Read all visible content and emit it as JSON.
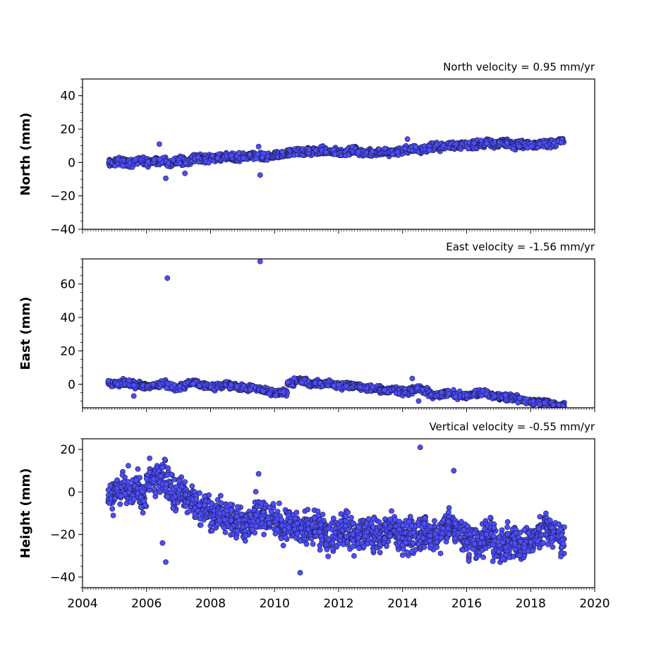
{
  "chart_data": [
    {
      "type": "scatter",
      "title": "North velocity = 0.95 mm/yr",
      "xlabel": "",
      "ylabel": "North (mm)",
      "xlim": [
        2004,
        2020
      ],
      "ylim": [
        -40,
        50
      ],
      "yticks": [
        -40,
        -20,
        0,
        20,
        40
      ],
      "xticks": [
        2004,
        2006,
        2008,
        2010,
        2012,
        2014,
        2016,
        2018,
        2020
      ],
      "show_x_tick_labels": false,
      "grid": false,
      "marker_color": "#4d4dff",
      "marker_edge": "#1a1a40",
      "series": [
        {
          "values_x": [
            2004.9,
            2005.1,
            2005.3,
            2005.5,
            2005.7,
            2005.9,
            2006.1,
            2006.3,
            2006.5,
            2006.7,
            2006.9,
            2007.1,
            2007.3,
            2007.5,
            2007.7,
            2007.9,
            2008.1,
            2008.3,
            2008.5,
            2008.7,
            2008.9,
            2009.1,
            2009.3,
            2009.5,
            2009.7,
            2009.9,
            2010.1,
            2010.3,
            2010.5,
            2010.7,
            2010.9,
            2011.1,
            2011.3,
            2011.5,
            2011.7,
            2011.9,
            2012.1,
            2012.3,
            2012.5,
            2012.7,
            2012.9,
            2013.1,
            2013.3,
            2013.5,
            2013.7,
            2013.9,
            2014.1,
            2014.3,
            2014.5,
            2014.7,
            2014.9,
            2015.1,
            2015.3,
            2015.5,
            2015.7,
            2015.9,
            2016.1,
            2016.3,
            2016.5,
            2016.7,
            2016.9,
            2017.1,
            2017.3,
            2017.5,
            2017.7,
            2017.9,
            2018.1,
            2018.3,
            2018.5,
            2018.7,
            2018.95,
            2006.4,
            2006.6,
            2009.5,
            2009.55,
            2007.2,
            2014.15
          ],
          "values_y": [
            -0.5,
            0.5,
            0.2,
            -0.5,
            0.8,
            0.6,
            0.0,
            1.5,
            1.0,
            -0.5,
            1.0,
            1.2,
            0.5,
            2.5,
            2.8,
            2.2,
            3.0,
            2.5,
            3.5,
            3.2,
            3.0,
            3.5,
            4.0,
            3.5,
            3.0,
            3.8,
            4.2,
            5.0,
            6.0,
            6.5,
            6.0,
            6.5,
            6.8,
            7.0,
            6.5,
            6.2,
            6.0,
            6.5,
            7.0,
            6.0,
            6.2,
            5.8,
            6.5,
            6.0,
            6.2,
            6.5,
            7.5,
            8.5,
            8.0,
            8.0,
            9.0,
            9.5,
            9.8,
            10.5,
            10.0,
            10.5,
            10.2,
            10.8,
            11.0,
            11.5,
            11.0,
            12.0,
            11.5,
            10.5,
            10.8,
            11.0,
            10.5,
            11.0,
            11.5,
            11.2,
            13.0,
            11.0,
            -9.5,
            9.5,
            -7.5,
            -6.5,
            14.0
          ]
        }
      ]
    },
    {
      "type": "scatter",
      "title": "East velocity = -1.56 mm/yr",
      "xlabel": "",
      "ylabel": "East (mm)",
      "xlim": [
        2004,
        2020
      ],
      "ylim": [
        -14,
        75
      ],
      "yticks": [
        0,
        20,
        40,
        60
      ],
      "xticks": [
        2004,
        2006,
        2008,
        2010,
        2012,
        2014,
        2016,
        2018,
        2020
      ],
      "show_x_tick_labels": false,
      "grid": false,
      "marker_color": "#4d4dff",
      "marker_edge": "#1a1a40",
      "series": [
        {
          "values_x": [
            2004.9,
            2005.1,
            2005.3,
            2005.5,
            2005.7,
            2005.9,
            2006.1,
            2006.3,
            2006.5,
            2006.7,
            2006.9,
            2007.1,
            2007.3,
            2007.5,
            2007.7,
            2007.9,
            2008.1,
            2008.3,
            2008.5,
            2008.7,
            2008.9,
            2009.1,
            2009.3,
            2009.5,
            2009.7,
            2009.9,
            2010.1,
            2010.3,
            2010.5,
            2010.7,
            2010.9,
            2011.1,
            2011.3,
            2011.5,
            2011.7,
            2011.9,
            2012.1,
            2012.3,
            2012.5,
            2012.7,
            2012.9,
            2013.1,
            2013.3,
            2013.5,
            2013.7,
            2013.9,
            2014.1,
            2014.3,
            2014.5,
            2014.7,
            2014.9,
            2015.1,
            2015.3,
            2015.5,
            2015.7,
            2015.9,
            2016.1,
            2016.3,
            2016.5,
            2016.7,
            2016.9,
            2017.1,
            2017.3,
            2017.5,
            2017.7,
            2017.9,
            2018.1,
            2018.3,
            2018.5,
            2018.7,
            2018.95,
            2006.65,
            2009.55,
            2005.6,
            2014.5,
            2014.3
          ],
          "values_y": [
            0.0,
            0.5,
            1.0,
            0.5,
            -0.5,
            -1.0,
            -1.5,
            -0.5,
            0.5,
            -1.0,
            -2.0,
            -1.5,
            0.5,
            1.0,
            -0.5,
            -1.0,
            -1.5,
            -0.5,
            0.0,
            -1.0,
            -2.0,
            -2.5,
            -2.0,
            -3.0,
            -3.5,
            -4.5,
            -5.5,
            -5.0,
            0.0,
            2.5,
            2.0,
            0.5,
            0.5,
            0.0,
            0.5,
            -0.5,
            -1.0,
            -0.5,
            -1.0,
            -1.5,
            -2.5,
            -2.8,
            -3.0,
            -3.5,
            -3.0,
            -4.0,
            -4.5,
            -3.5,
            -2.5,
            -4.0,
            -6.0,
            -6.5,
            -5.5,
            -5.5,
            -6.5,
            -7.0,
            -6.5,
            -5.5,
            -5.0,
            -6.0,
            -7.0,
            -7.5,
            -8.0,
            -8.5,
            -9.0,
            -10.0,
            -10.5,
            -11.0,
            -10.5,
            -11.5,
            -12.5,
            63.5,
            73.5,
            -7.0,
            -10.0,
            3.5
          ]
        }
      ]
    },
    {
      "type": "scatter",
      "title": "Vertical velocity = -0.55 mm/yr",
      "xlabel": "",
      "ylabel": "Height (mm)",
      "xlim": [
        2004,
        2020
      ],
      "ylim": [
        -45,
        25
      ],
      "yticks": [
        -40,
        -20,
        0,
        20
      ],
      "xticks": [
        2004,
        2006,
        2008,
        2010,
        2012,
        2014,
        2016,
        2018,
        2020
      ],
      "xtick_labels": [
        "2004",
        "2006",
        "2008",
        "2010",
        "2012",
        "2014",
        "2016",
        "2018",
        "2020"
      ],
      "show_x_tick_labels": true,
      "grid": false,
      "marker_color": "#4d4dff",
      "marker_edge": "#1a1a40",
      "series": [
        {
          "values_x": [
            2004.9,
            2005.1,
            2005.3,
            2005.5,
            2005.7,
            2005.9,
            2006.1,
            2006.3,
            2006.5,
            2006.7,
            2006.9,
            2007.1,
            2007.3,
            2007.5,
            2007.7,
            2007.9,
            2008.1,
            2008.3,
            2008.5,
            2008.7,
            2008.9,
            2009.1,
            2009.3,
            2009.5,
            2009.7,
            2009.9,
            2010.1,
            2010.3,
            2010.5,
            2010.7,
            2010.9,
            2011.1,
            2011.3,
            2011.5,
            2011.7,
            2011.9,
            2012.1,
            2012.3,
            2012.5,
            2012.7,
            2012.9,
            2013.1,
            2013.3,
            2013.5,
            2013.7,
            2013.9,
            2014.1,
            2014.3,
            2014.5,
            2014.7,
            2014.9,
            2015.1,
            2015.3,
            2015.5,
            2015.7,
            2015.9,
            2016.1,
            2016.3,
            2016.5,
            2016.7,
            2016.9,
            2017.1,
            2017.3,
            2017.5,
            2017.7,
            2017.9,
            2018.1,
            2018.3,
            2018.5,
            2018.7,
            2018.95,
            2014.55,
            2006.6,
            2006.5,
            2015.6,
            2010.8,
            2009.5
          ],
          "values_y": [
            -3.0,
            0.0,
            2.0,
            1.5,
            2.0,
            -2.0,
            5.0,
            6.0,
            8.0,
            3.0,
            -2.0,
            1.0,
            -3.0,
            -5.0,
            -7.0,
            -8.0,
            -10.0,
            -11.0,
            -12.0,
            -13.0,
            -15.0,
            -14.0,
            -12.0,
            -10.0,
            -11.0,
            -12.0,
            -14.0,
            -16.0,
            -15.0,
            -17.0,
            -19.0,
            -18.0,
            -16.0,
            -19.0,
            -22.0,
            -21.0,
            -19.0,
            -18.0,
            -20.0,
            -19.0,
            -18.0,
            -20.0,
            -21.0,
            -19.0,
            -18.0,
            -21.0,
            -22.0,
            -20.0,
            -21.0,
            -18.0,
            -20.0,
            -22.0,
            -17.0,
            -15.0,
            -18.0,
            -20.0,
            -22.0,
            -24.0,
            -22.0,
            -21.0,
            -24.0,
            -25.0,
            -24.0,
            -23.0,
            -25.0,
            -24.0,
            -22.0,
            -20.0,
            -17.0,
            -18.0,
            -22.0,
            21.0,
            -33.0,
            -24.0,
            10.0,
            -38.0,
            8.5
          ]
        }
      ]
    }
  ]
}
